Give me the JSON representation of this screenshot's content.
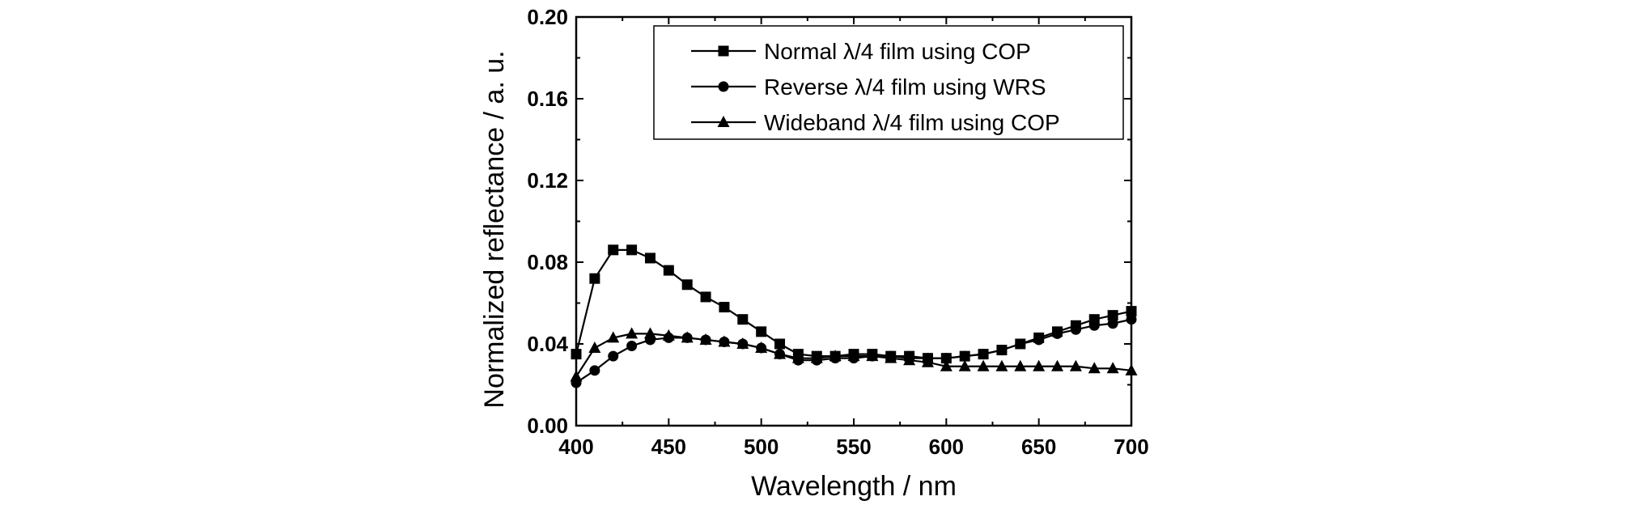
{
  "chart_data": {
    "type": "line",
    "xlabel": "Wavelength / nm",
    "ylabel": "Normalized reflectance / a. u.",
    "xlim": [
      400,
      700
    ],
    "ylim": [
      0.0,
      0.2
    ],
    "xticks": [
      400,
      450,
      500,
      550,
      600,
      650,
      700
    ],
    "xtick_labels": [
      "400",
      "450",
      "500",
      "550",
      "600",
      "650",
      "700"
    ],
    "yticks": [
      0.0,
      0.04,
      0.08,
      0.12,
      0.16,
      0.2
    ],
    "ytick_labels": [
      "0.00",
      "0.04",
      "0.08",
      "0.12",
      "0.16",
      "0.20"
    ],
    "legend_position": "top-right",
    "grid": false,
    "x": [
      400,
      410,
      420,
      430,
      440,
      450,
      460,
      470,
      480,
      490,
      500,
      510,
      520,
      530,
      540,
      550,
      560,
      570,
      580,
      590,
      600,
      610,
      620,
      630,
      640,
      650,
      660,
      670,
      680,
      690,
      700
    ],
    "series": [
      {
        "name": "Normal λ/4 film using COP",
        "marker": "square",
        "values": [
          0.035,
          0.072,
          0.086,
          0.086,
          0.082,
          0.076,
          0.069,
          0.063,
          0.058,
          0.052,
          0.046,
          0.04,
          0.035,
          0.034,
          0.034,
          0.035,
          0.035,
          0.034,
          0.034,
          0.033,
          0.033,
          0.034,
          0.035,
          0.037,
          0.04,
          0.043,
          0.046,
          0.049,
          0.052,
          0.054,
          0.056
        ]
      },
      {
        "name": "Reverse λ/4 film using WRS",
        "marker": "circle",
        "values": [
          0.021,
          0.027,
          0.034,
          0.039,
          0.042,
          0.043,
          0.043,
          0.042,
          0.041,
          0.04,
          0.038,
          0.035,
          0.032,
          0.032,
          0.033,
          0.033,
          0.034,
          0.034,
          0.033,
          0.033,
          0.033,
          0.034,
          0.035,
          0.037,
          0.04,
          0.042,
          0.045,
          0.047,
          0.049,
          0.05,
          0.052
        ]
      },
      {
        "name": "Wideband λ/4 film using COP",
        "marker": "triangle",
        "values": [
          0.024,
          0.038,
          0.043,
          0.045,
          0.045,
          0.044,
          0.043,
          0.042,
          0.041,
          0.04,
          0.038,
          0.035,
          0.033,
          0.033,
          0.034,
          0.034,
          0.034,
          0.033,
          0.032,
          0.031,
          0.029,
          0.029,
          0.029,
          0.029,
          0.029,
          0.029,
          0.029,
          0.029,
          0.028,
          0.028,
          0.027
        ]
      }
    ]
  },
  "colors": {
    "background": "#ffffff",
    "ink": "#000000"
  }
}
